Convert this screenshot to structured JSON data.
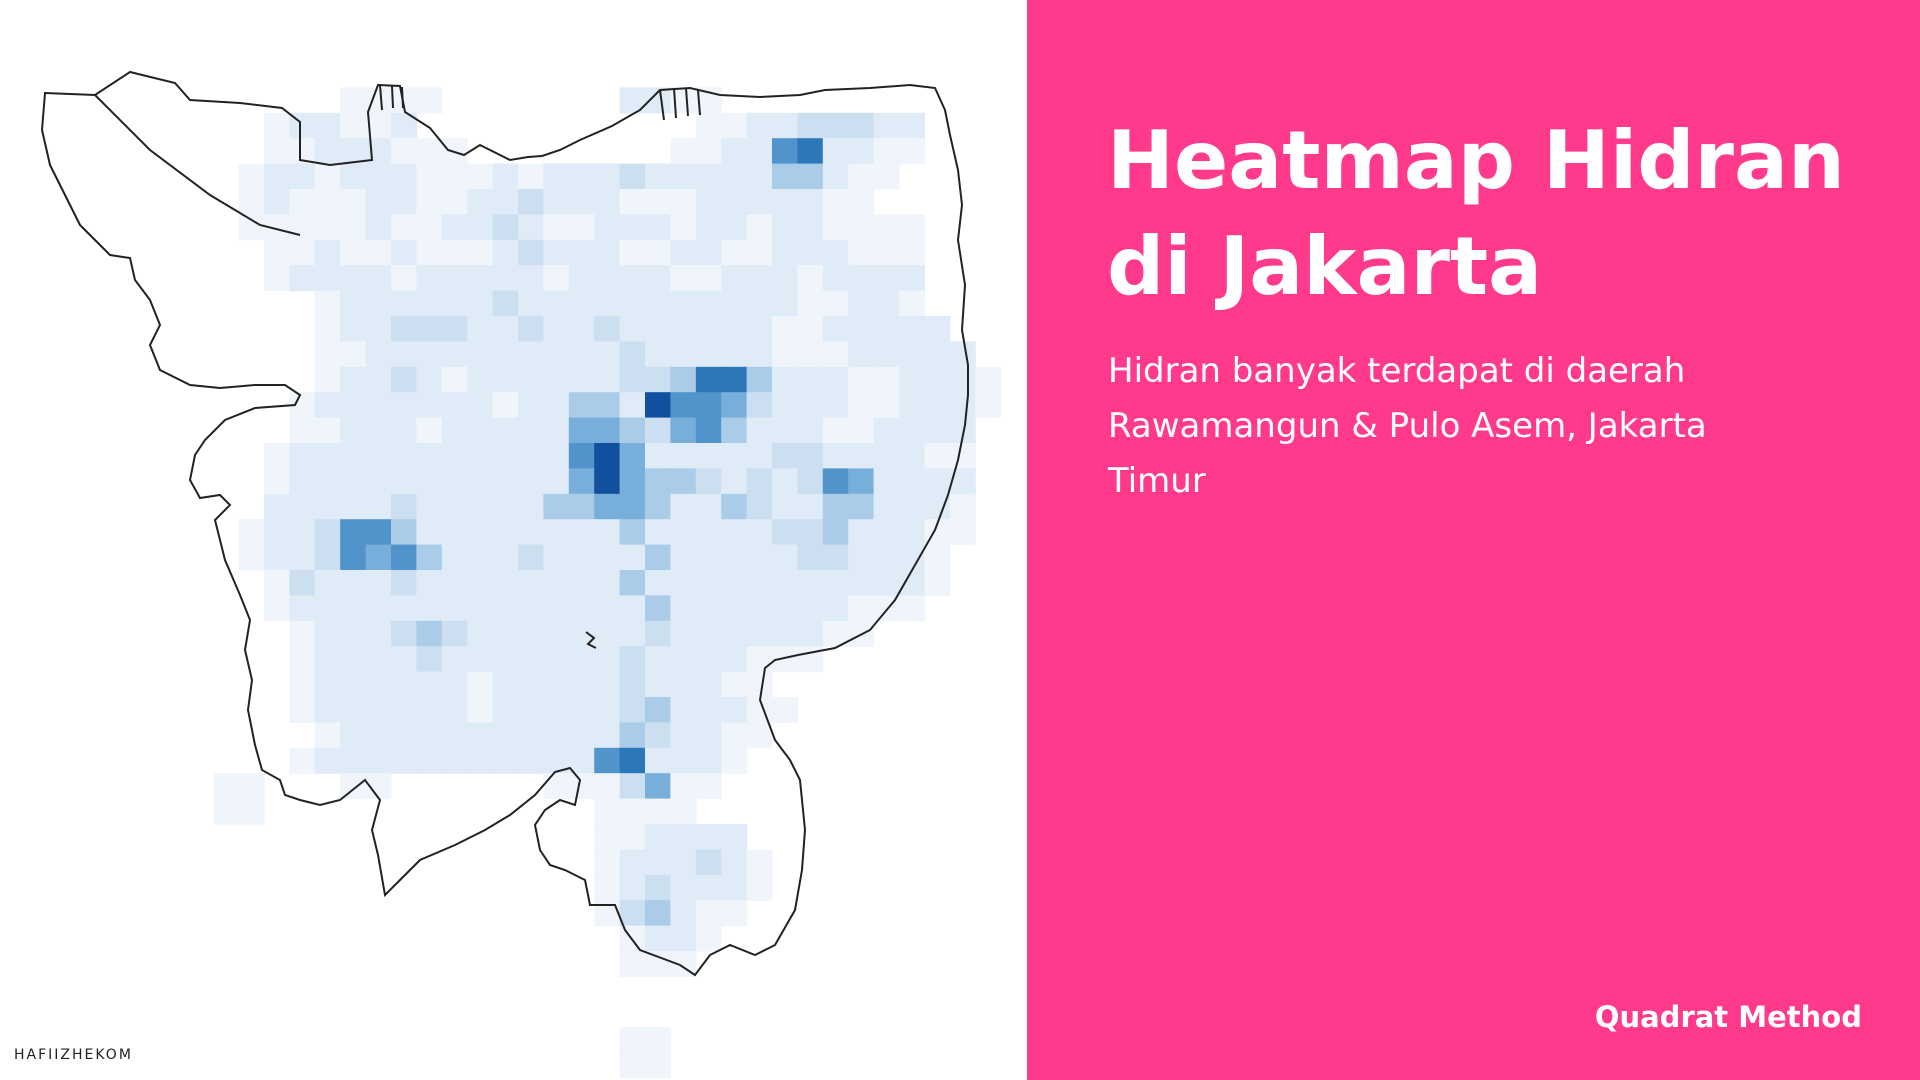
{
  "slide": {
    "title": "Heatmap Hidran di Jakarta",
    "description": "Hidran banyak terdapat di daerah Rawamangun & Pulo Asem, Jakarta Timur",
    "method_label": "Quadrat Method",
    "credit": "HAFIIZHEKOM",
    "accent_color": "#ff3a8c",
    "outline_color": "#222222"
  },
  "chart_data": {
    "type": "heatmap",
    "title": "Heatmap Hidran di Jakarta",
    "xlabel": "",
    "ylabel": "",
    "grid": false,
    "legend": "none",
    "colormap": "Blues",
    "value_range": [
      0,
      1
    ],
    "cell_size_note": "quadrat grid, relative density",
    "cells_density": [
      ".......................................",
      ".............aaaa.......bbaa...........",
      "..........abbaab...........aabbcccbb...",
      "..........aabbbaaa........aabbfgbbaa...",
      ".........abbabbbaaababbbcbbbbbddbaa....",
      ".........abaaabbaabbcbbbaaabbbbbaa.....",
      ".........aaaaabaabbcbaabbbabbabbaaaa...",
      "..........aabaabaaabcbbbaabbaabbbaaa...",
      "..........abbbbabbbbbabbbbaabbbabbbb...",
      "............abbbbbbcbbbbbbbbbbbaabba...",
      "............abbcccbbcbbcbbbbbbaabbbbb..",
      "............aabbbbbbbbbbcbbbbbaaabbbbb.",
      "............abbcbabbbbbbccdggdbbbaabbba",
      "...........abbbbbbbabbddbhffecbbbaabbba",
      "...........aabbbabbbbbeedcefdbbbaabbbb.",
      "..........abbbbbbbbbbbfhebbbbbccbbbbaa.",
      "..........abbbbbbbbbbbeheddcbcbcfebbbb.",
      "..........bbbbbcbbbbbddeedbbdcbbddbbba.",
      ".........abbcffdbbbbbbbbdbbbbbccdbbbaa.",
      ".........abbcfefdbbbcbbbbdbbbbbccbbba..",
      "..........acbbbcbbbbbbbbdbbbbbbbbbbba..",
      "..........abbbbbbbbbbbbbbdbbbbbbbaaa...",
      "...........abbbcdcbbbbbbbcbbbbbbaa.....",
      "...........abbbbcbbbbbbbcbbbbaaa.......",
      "...........abbbbbbabbbbbcbbbaa.........",
      "...........abbbbbbabbbbbcdbbbaa........",
      "............abbbbbbbbbbbdcbbaa.........",
      "...........abbbbbbbbbbbfgbbba..........",
      "........aa...aa......aaaceaa...........",
      "........aa.............aaaa............",
      ".......................aabbbb..........",
      ".......................abbbcba.........",
      ".......................abcbbba.........",
      ".......................acdbaa..........",
      "........................abba...........",
      "........................aaa............",
      ".......................................",
      ".......................................",
      "........................aa.............",
      "........................aa............."
    ],
    "density_scale": {
      ".": 0,
      "a": 0.08,
      "b": 0.17,
      "c": 0.27,
      "d": 0.37,
      "e": 0.5,
      "f": 0.62,
      "g": 0.75,
      "h": 0.9
    },
    "annotations": [
      "Rawamangun",
      "Pulo Asem",
      "Jakarta Timur"
    ]
  }
}
